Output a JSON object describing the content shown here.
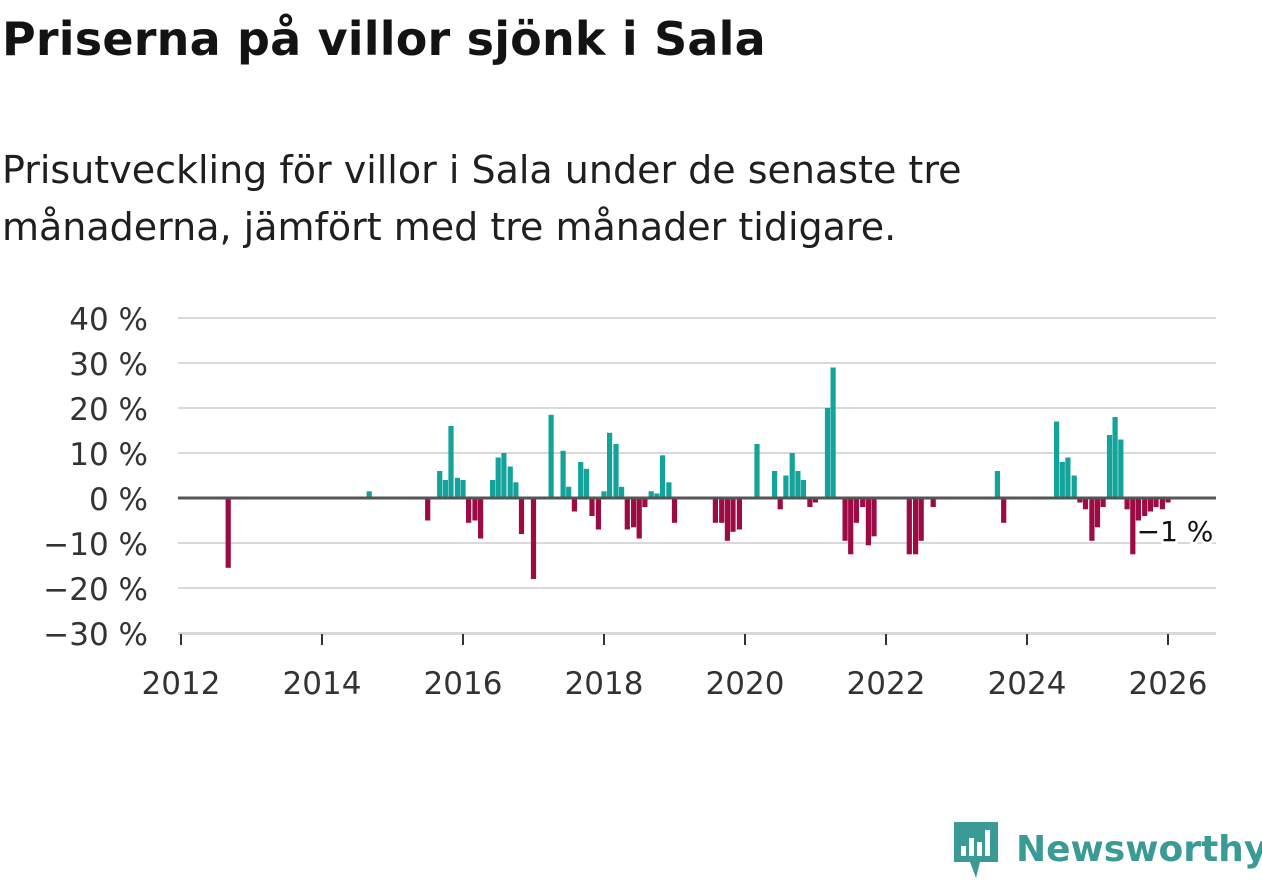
{
  "title": "Priserna på villor sjönk i Sala",
  "subtitle": "Prisutveckling för villor i Sala under de senaste tre månaderna, jämfört med tre månader tidigare.",
  "brand": {
    "name": "Newsworthy",
    "logo_icon": "bar-chart-speech-bubble-icon"
  },
  "colors": {
    "positive": "#13a39b",
    "negative": "#9c0b44",
    "grid": "#d9d9d9",
    "zero_line": "#555555",
    "brand": "#3a9a96"
  },
  "chart_data": {
    "type": "bar",
    "title": "Priserna på villor sjönk i Sala",
    "xlabel": "",
    "ylabel": "",
    "ylim": [
      -30,
      40
    ],
    "xlim": [
      2012,
      2026.7
    ],
    "y_ticks": [
      40,
      30,
      20,
      10,
      0,
      -10,
      -20,
      -30
    ],
    "y_tick_labels": [
      "40 %",
      "30 %",
      "20 %",
      "10 %",
      "0 %",
      "−10 %",
      "−20 %",
      "−30 %"
    ],
    "x_ticks": [
      2012,
      2014,
      2016,
      2018,
      2020,
      2022,
      2024,
      2026
    ],
    "x_tick_labels": [
      "2012",
      "2014",
      "2016",
      "2018",
      "2020",
      "2022",
      "2024",
      "2026"
    ],
    "grid": true,
    "annotation": {
      "text": "−1 %",
      "x": 2026.0,
      "y": -0.5
    },
    "bars": [
      [
        2012.67,
        -15.5
      ],
      [
        2014.67,
        1.5
      ],
      [
        2015.5,
        -5
      ],
      [
        2015.67,
        6
      ],
      [
        2015.75,
        4
      ],
      [
        2015.83,
        16
      ],
      [
        2015.92,
        4.5
      ],
      [
        2016.0,
        4
      ],
      [
        2016.08,
        -5.5
      ],
      [
        2016.17,
        -5
      ],
      [
        2016.25,
        -9
      ],
      [
        2016.42,
        4
      ],
      [
        2016.5,
        9
      ],
      [
        2016.58,
        10
      ],
      [
        2016.67,
        7
      ],
      [
        2016.75,
        3.5
      ],
      [
        2016.83,
        -8
      ],
      [
        2017.0,
        -18
      ],
      [
        2017.25,
        18.5
      ],
      [
        2017.42,
        10.5
      ],
      [
        2017.5,
        2.5
      ],
      [
        2017.58,
        -3
      ],
      [
        2017.67,
        8
      ],
      [
        2017.75,
        6.5
      ],
      [
        2017.83,
        -4
      ],
      [
        2017.92,
        -7
      ],
      [
        2018.0,
        1.5
      ],
      [
        2018.08,
        14.5
      ],
      [
        2018.17,
        12
      ],
      [
        2018.25,
        2.5
      ],
      [
        2018.33,
        -7
      ],
      [
        2018.42,
        -6.5
      ],
      [
        2018.5,
        -9
      ],
      [
        2018.58,
        -2
      ],
      [
        2018.67,
        1.5
      ],
      [
        2018.75,
        1
      ],
      [
        2018.83,
        9.5
      ],
      [
        2018.92,
        3.5
      ],
      [
        2019.0,
        -5.5
      ],
      [
        2019.58,
        -5.5
      ],
      [
        2019.67,
        -5.5
      ],
      [
        2019.75,
        -9.5
      ],
      [
        2019.83,
        -7.5
      ],
      [
        2019.92,
        -7
      ],
      [
        2020.17,
        12
      ],
      [
        2020.42,
        6
      ],
      [
        2020.5,
        -2.5
      ],
      [
        2020.58,
        5
      ],
      [
        2020.67,
        10
      ],
      [
        2020.75,
        6
      ],
      [
        2020.83,
        4
      ],
      [
        2020.92,
        -2
      ],
      [
        2021.0,
        -1
      ],
      [
        2021.17,
        20
      ],
      [
        2021.25,
        29
      ],
      [
        2021.42,
        -9.5
      ],
      [
        2021.5,
        -12.5
      ],
      [
        2021.58,
        -5.5
      ],
      [
        2021.67,
        -2
      ],
      [
        2021.75,
        -10.5
      ],
      [
        2021.83,
        -8.5
      ],
      [
        2022.33,
        -12.5
      ],
      [
        2022.42,
        -12.5
      ],
      [
        2022.5,
        -9.5
      ],
      [
        2022.67,
        -2
      ],
      [
        2023.58,
        6
      ],
      [
        2023.67,
        -5.5
      ],
      [
        2024.42,
        17
      ],
      [
        2024.5,
        8
      ],
      [
        2024.58,
        9
      ],
      [
        2024.67,
        5
      ],
      [
        2024.75,
        -1
      ],
      [
        2024.83,
        -2.5
      ],
      [
        2024.92,
        -9.5
      ],
      [
        2025.0,
        -6.5
      ],
      [
        2025.08,
        -2
      ],
      [
        2025.17,
        14
      ],
      [
        2025.25,
        18
      ],
      [
        2025.33,
        13
      ],
      [
        2025.42,
        -2.5
      ],
      [
        2025.5,
        -12.5
      ],
      [
        2025.58,
        -5
      ],
      [
        2025.67,
        -4
      ],
      [
        2025.75,
        -3
      ],
      [
        2025.83,
        -2
      ],
      [
        2025.92,
        -2.5
      ],
      [
        2026.0,
        -1
      ]
    ]
  }
}
